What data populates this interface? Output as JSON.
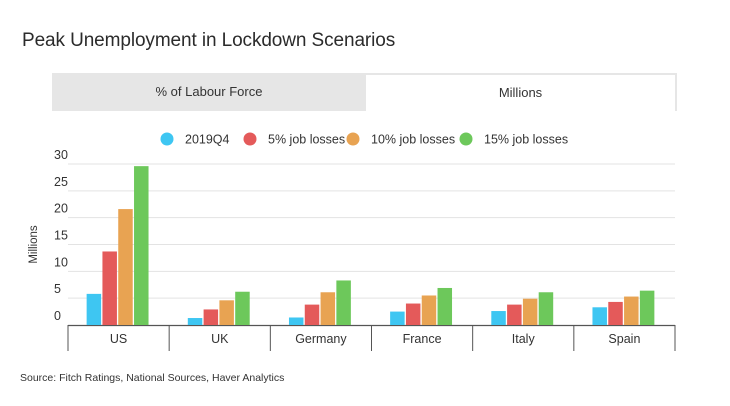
{
  "title": "Peak Unemployment in Lockdown Scenarios",
  "tabs": [
    {
      "label": "% of Labour Force",
      "active": false
    },
    {
      "label": "Millions",
      "active": true
    }
  ],
  "source": "Source: Fitch Ratings, National Sources, Haver Analytics",
  "chart_data": {
    "type": "bar",
    "title": "Peak Unemployment in Lockdown Scenarios",
    "ylabel": "Millions",
    "xlabel": "",
    "ylim": [
      0,
      30
    ],
    "yticks": [
      0,
      5,
      10,
      15,
      20,
      25,
      30
    ],
    "grid": true,
    "legend_position": "top",
    "categories": [
      "US",
      "UK",
      "Germany",
      "France",
      "Italy",
      "Spain"
    ],
    "series": [
      {
        "name": "2019Q4",
        "color": "#3ec6f2",
        "values": [
          5.8,
          1.3,
          1.4,
          2.5,
          2.6,
          3.3
        ]
      },
      {
        "name": "5% job losses",
        "color": "#e45a5a",
        "values": [
          13.7,
          2.9,
          3.8,
          4.0,
          3.8,
          4.3
        ]
      },
      {
        "name": "10% job losses",
        "color": "#e8a352",
        "values": [
          21.6,
          4.6,
          6.1,
          5.5,
          4.9,
          5.3
        ]
      },
      {
        "name": "15% job losses",
        "color": "#6dc85b",
        "values": [
          29.6,
          6.2,
          8.3,
          6.9,
          6.1,
          6.4
        ]
      }
    ]
  }
}
